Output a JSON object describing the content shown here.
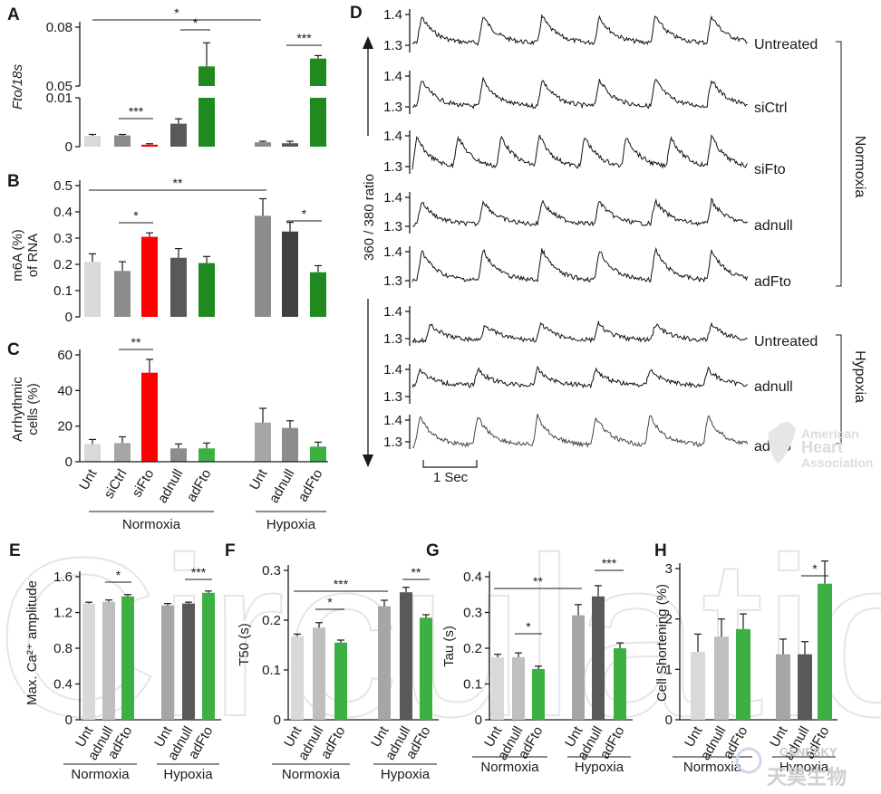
{
  "figure": {
    "watermark": "Circulation",
    "aha_logo_text": [
      "American",
      "Heart",
      "Association"
    ],
    "brand_text": [
      "GENESKY",
      "天昊生物"
    ]
  },
  "colors": {
    "light_gray": "#d9d9d9",
    "mid_gray": "#8c8c8c",
    "gray": "#a6a6a6",
    "dark_gray": "#595959",
    "red": "#ff0000",
    "green": "#1f8a1f",
    "light_green": "#3cb043"
  },
  "chart_data": [
    {
      "panel": "A",
      "type": "bar",
      "ylabel": "Fto/18s",
      "yaxis_broken": true,
      "lower_ticks": [
        "0",
        "0.01"
      ],
      "upper_ticks": [
        "0.05",
        "0.08"
      ],
      "ylim_lower": [
        0,
        0.01
      ],
      "ylim_upper": [
        0.05,
        0.08
      ],
      "categories": [
        "Unt",
        "siCtrl",
        "siFto",
        "adnull",
        "adFto",
        "Unt",
        "adnull",
        "adFto"
      ],
      "groups": [
        "Normoxia",
        "Normoxia",
        "Normoxia",
        "Normoxia",
        "Normoxia",
        "Hypoxia",
        "Hypoxia",
        "Hypoxia"
      ],
      "values": [
        0.0022,
        0.0023,
        0.0004,
        0.0047,
        0.06,
        0.0009,
        0.0007,
        0.064
      ],
      "errors": [
        0.0003,
        0.0002,
        0.0002,
        0.001,
        0.012,
        0.0002,
        0.0004,
        0.0015
      ],
      "colors": [
        "#d9d9d9",
        "#8c8c8c",
        "#ff0000",
        "#595959",
        "#1f8a1f",
        "#8c8c8c",
        "#595959",
        "#1f8a1f"
      ],
      "significance": [
        {
          "label": "*",
          "from": 0,
          "to": 5
        },
        {
          "label": "*",
          "from": 3,
          "to": 4
        },
        {
          "label": "***",
          "from": 1,
          "to": 2
        },
        {
          "label": "***",
          "from": 6,
          "to": 7
        }
      ]
    },
    {
      "panel": "B",
      "type": "bar",
      "ylabel": "m6A (%) of RNA",
      "ylim": [
        0,
        0.5
      ],
      "yticks": [
        "0",
        "0.1",
        "0.2",
        "0.3",
        "0.4",
        "0.5"
      ],
      "categories": [
        "Unt",
        "siCtrl",
        "siFto",
        "adnull",
        "adFto",
        "Unt",
        "adnull",
        "adFto"
      ],
      "values": [
        0.21,
        0.175,
        0.305,
        0.225,
        0.205,
        0.385,
        0.325,
        0.17
      ],
      "errors": [
        0.03,
        0.035,
        0.015,
        0.035,
        0.025,
        0.065,
        0.035,
        0.025
      ],
      "colors": [
        "#d9d9d9",
        "#8c8c8c",
        "#ff0000",
        "#595959",
        "#1f8a1f",
        "#8c8c8c",
        "#404040",
        "#1f8a1f"
      ],
      "significance": [
        {
          "label": "**",
          "from": 0,
          "to": 5
        },
        {
          "label": "*",
          "from": 1,
          "to": 2
        },
        {
          "label": "*",
          "from": 6,
          "to": 7
        }
      ]
    },
    {
      "panel": "C",
      "type": "bar",
      "ylabel": "Arrhythmic cells (%)",
      "ylim": [
        0,
        60
      ],
      "yticks": [
        "0",
        "20",
        "40",
        "60"
      ],
      "categories": [
        "Unt",
        "siCtrl",
        "siFto",
        "adnull",
        "adFto",
        "Unt",
        "adnull",
        "adFto"
      ],
      "values": [
        10,
        10.5,
        50,
        7.5,
        7.5,
        22,
        19,
        8.5
      ],
      "errors": [
        2.5,
        3.5,
        7.5,
        2.5,
        3,
        8,
        4,
        2.5
      ],
      "colors": [
        "#d9d9d9",
        "#a6a6a6",
        "#ff0000",
        "#8c8c8c",
        "#3cb043",
        "#a6a6a6",
        "#8c8c8c",
        "#3cb043"
      ],
      "significance": [
        {
          "label": "**",
          "from": 1,
          "to": 2
        }
      ],
      "group_labels": [
        "Normoxia",
        "Hypoxia"
      ]
    },
    {
      "panel": "D",
      "type": "line",
      "ylabel": "360 / 380 ratio",
      "yticks": [
        "1.3",
        "1.4"
      ],
      "scale_bar": "1 Sec",
      "traces": [
        {
          "name": "Untreated",
          "group": "Normoxia"
        },
        {
          "name": "siCtrl",
          "group": "Normoxia"
        },
        {
          "name": "siFto",
          "group": "Normoxia"
        },
        {
          "name": "adnull",
          "group": "Normoxia"
        },
        {
          "name": "adFto",
          "group": "Normoxia"
        },
        {
          "name": "Untreated",
          "group": "Hypoxia"
        },
        {
          "name": "adnull",
          "group": "Hypoxia"
        },
        {
          "name": "adFto",
          "group": "Hypoxia"
        }
      ],
      "group_labels": [
        "Normoxia",
        "Hypoxia"
      ]
    },
    {
      "panel": "E",
      "type": "bar",
      "ylabel": "Max. Ca²⁺ amplitude",
      "ylim": [
        0,
        1.6
      ],
      "yticks": [
        "0",
        "0.4",
        "0.8",
        "1.2",
        "1.6"
      ],
      "categories": [
        "Unt",
        "adnull",
        "adFto",
        "Unt",
        "adnull",
        "adFto"
      ],
      "values": [
        1.3,
        1.32,
        1.38,
        1.28,
        1.3,
        1.42
      ],
      "errors": [
        0.015,
        0.02,
        0.02,
        0.02,
        0.015,
        0.02
      ],
      "colors": [
        "#d9d9d9",
        "#bfbfbf",
        "#3cb043",
        "#a6a6a6",
        "#595959",
        "#3cb043"
      ],
      "significance": [
        {
          "label": "*",
          "from": 1,
          "to": 2
        },
        {
          "label": "***",
          "from": 4,
          "to": 5
        }
      ],
      "group_labels": [
        "Normoxia",
        "Hypoxia"
      ]
    },
    {
      "panel": "F",
      "type": "bar",
      "ylabel": "T50 (s)",
      "ylim": [
        0,
        0.3
      ],
      "yticks": [
        "0",
        "0.1",
        "0.2",
        "0.3"
      ],
      "categories": [
        "Unt",
        "adnull",
        "adFto",
        "Unt",
        "adnull",
        "adFto"
      ],
      "values": [
        0.168,
        0.185,
        0.155,
        0.228,
        0.256,
        0.205
      ],
      "errors": [
        0.004,
        0.01,
        0.005,
        0.012,
        0.01,
        0.006
      ],
      "colors": [
        "#d9d9d9",
        "#bfbfbf",
        "#3cb043",
        "#a6a6a6",
        "#595959",
        "#3cb043"
      ],
      "significance": [
        {
          "label": "***",
          "from": 0,
          "to": 3
        },
        {
          "label": "*",
          "from": 1,
          "to": 2
        },
        {
          "label": "**",
          "from": 4,
          "to": 5
        }
      ],
      "group_labels": [
        "Normoxia",
        "Hypoxia"
      ]
    },
    {
      "panel": "G",
      "type": "bar",
      "ylabel": "Tau (s)",
      "ylim": [
        0,
        0.4
      ],
      "yticks": [
        "0",
        "0.1",
        "0.2",
        "0.3",
        "0.4"
      ],
      "categories": [
        "Unt",
        "adnull",
        "adFto",
        "Unt",
        "adnull",
        "adFto"
      ],
      "values": [
        0.175,
        0.175,
        0.142,
        0.292,
        0.345,
        0.2
      ],
      "errors": [
        0.008,
        0.012,
        0.008,
        0.03,
        0.03,
        0.015
      ],
      "colors": [
        "#d9d9d9",
        "#bfbfbf",
        "#3cb043",
        "#a6a6a6",
        "#595959",
        "#3cb043"
      ],
      "significance": [
        {
          "label": "**",
          "from": 0,
          "to": 3
        },
        {
          "label": "*",
          "from": 1,
          "to": 2
        },
        {
          "label": "***",
          "from": 4,
          "to": 5
        }
      ],
      "group_labels": [
        "Normoxia",
        "Hypoxia"
      ]
    },
    {
      "panel": "H",
      "type": "bar",
      "ylabel": "Cell Shortening (%)",
      "ylim": [
        0,
        3
      ],
      "yticks": [
        "0",
        "1",
        "2",
        "3"
      ],
      "categories": [
        "Unt",
        "adnull",
        "adFto",
        "Unt",
        "adnull",
        "adFto"
      ],
      "values": [
        1.35,
        1.65,
        1.8,
        1.3,
        1.3,
        2.7
      ],
      "errors": [
        0.35,
        0.35,
        0.3,
        0.3,
        0.25,
        0.45
      ],
      "colors": [
        "#d9d9d9",
        "#bfbfbf",
        "#3cb043",
        "#a6a6a6",
        "#595959",
        "#3cb043"
      ],
      "significance": [
        {
          "label": "*",
          "from": 4,
          "to": 5
        }
      ],
      "group_labels": [
        "Normoxia",
        "Hypoxia"
      ]
    }
  ]
}
